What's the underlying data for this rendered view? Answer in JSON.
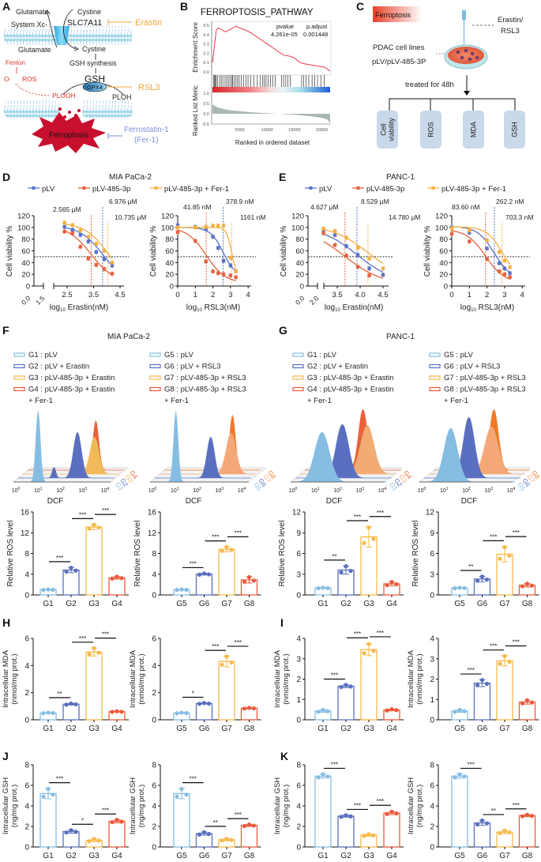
{
  "panel_labels": {
    "a": "A",
    "b": "B",
    "c": "C",
    "d": "D",
    "e": "E",
    "f": "F",
    "g": "G",
    "h": "H",
    "i": "I",
    "j": "J",
    "k": "K"
  },
  "panel_a": {
    "glutamate_top": "Glutamate",
    "cystine_top": "Cystine",
    "slc7a11": "SLC7A11",
    "erastin": "Erastin",
    "system_xc": "System Xc-",
    "glutamate_bottom": "Glutamate",
    "cystine_bottom": "Cystine",
    "gsh_synthesis": "GSH synthesis",
    "fenton": "Fenton",
    "o_radical": "O·",
    "ros": "ROS",
    "gsh": "GSH",
    "gpx4": "GPX4",
    "rsl3": "RSL3",
    "plooh": "PLOOH",
    "ploh": "PLOH",
    "ferroptosis": "Ferroptosis",
    "ferrostatin": "Ferrostatin-1",
    "fer1": "(Fer-1)",
    "colors": {
      "inhibitor": "#f5a53c",
      "fer1": "#7a8fd6",
      "ros": "#e0302a",
      "membrane": "#9fd8ea",
      "ferroptosis": "#c8102e"
    }
  },
  "panel_c": {
    "ferroptosis": "Ferroptosis",
    "erastin_rsl3": [
      "Erastin/",
      "RSL3"
    ],
    "cells": [
      "PDAC cell lines",
      "pLV/pLV-485-3P"
    ],
    "treated": "treated for 48h",
    "assays": [
      [
        "Cell",
        "viability"
      ],
      [
        "ROS"
      ],
      [
        "MDA"
      ],
      [
        "GSH"
      ]
    ],
    "box_color": "#c9d8ea"
  },
  "de_common": {
    "titles": [
      "MIA PaCa-2",
      "PANC-1"
    ],
    "legend": [
      "pLV",
      "pLV-485-3p",
      "pLV-485-3p + Fer-1"
    ],
    "colors": [
      "#5a72c8",
      "#e8603c",
      "#f5b042"
    ],
    "ylabel": "Cell viability %"
  },
  "fg_common": {
    "titles": [
      "MIA PaCa-2",
      "PANC-1"
    ],
    "legend_erastin": [
      "G1 : pLV",
      "G2 : pLV + Erastin",
      "G3 : pLV-485-3p + Erastin",
      "G4 : pLV-485-3p + Erastin",
      "+ Fer-1"
    ],
    "legend_rsl3": [
      "G5 : pLV",
      "G6 : pLV + RSL3",
      "G7 : pLV-485-3p + RSL3",
      "G8 : pLV-485-3p + RSL3",
      "+ Fer-1"
    ],
    "xlabel": "DCF",
    "decade_ticks": [
      "10",
      "10",
      "10",
      "10",
      "10"
    ],
    "decade_exps": [
      "0",
      "1",
      "2",
      "3",
      "4"
    ]
  },
  "chart_data": [
    {
      "type": "line",
      "title": "FERROPTOSIS_PATHWAY",
      "ylabel": "Enrichment Score",
      "ylabel2": "Ranked List Meric",
      "xlabel": "Ranked in ordered dataset",
      "stat_headers": [
        "pvalue",
        "p.adjust"
      ],
      "stat_values": [
        "4.261e-05",
        "0.001448"
      ],
      "x": [
        0,
        300,
        700,
        1000,
        1500,
        2000,
        2500,
        3000,
        3500,
        4200,
        5000,
        6000,
        7000,
        8000,
        9000,
        10000,
        11000,
        12000,
        13000,
        14000,
        15000,
        16000,
        16500,
        17500,
        18500,
        19500,
        20500,
        21500
      ],
      "es": [
        0.1,
        0.25,
        0.45,
        0.47,
        0.46,
        0.44,
        0.43,
        0.45,
        0.46,
        0.49,
        0.47,
        0.45,
        0.42,
        0.38,
        0.34,
        0.3,
        0.26,
        0.22,
        0.18,
        0.17,
        0.15,
        0.1,
        0.09,
        0.08,
        0.07,
        0.06,
        0.05,
        0.01
      ],
      "hits": [
        200,
        400,
        500,
        700,
        900,
        1300,
        1600,
        1900,
        2300,
        2600,
        2900,
        3200,
        3500,
        3700,
        4000,
        4300,
        4600,
        4900,
        5300,
        5700,
        6100,
        6500,
        7000,
        7600,
        8200,
        8700,
        9200,
        9500,
        9800,
        10200,
        10600,
        11000,
        11500,
        12600,
        13000,
        13400,
        13800,
        14200,
        16300,
        16700,
        17100,
        17600,
        18200,
        18700,
        19200,
        19800,
        20400
      ],
      "metric_x": [
        0,
        1000,
        3000,
        6000,
        9000,
        12000,
        15000,
        18000,
        20000,
        21000,
        21500
      ],
      "metric": [
        0.45,
        0.3,
        0.18,
        0.1,
        0.04,
        0.0,
        -0.05,
        -0.12,
        -0.2,
        -0.28,
        -0.45
      ],
      "yticks_es": [
        "0.0",
        "0.1",
        "0.2",
        "0.3",
        "0.4",
        "0.5"
      ],
      "yticks_metric": [
        "1.0",
        "0.5",
        "0.0",
        "-0.5"
      ],
      "xticks": [
        "5000",
        "10000",
        "15000",
        "20000"
      ],
      "xlim": [
        0,
        21500
      ]
    },
    {
      "type": "line",
      "xlabel_parts": [
        "log",
        "10",
        " Erastin(nM)"
      ],
      "ylim": [
        0,
        120
      ],
      "yticks": [
        "0",
        "20",
        "40",
        "60",
        "80",
        "100",
        "120"
      ],
      "xticks": [
        "2.5",
        "3.5",
        "4.5"
      ],
      "break_ticks": [
        "0.0",
        "1.5"
      ],
      "ic50_labels": [
        "2.565 μM",
        "6.976 μM",
        "10.735 μM"
      ],
      "ic50_log10": [
        3.41,
        3.84,
        4.03
      ],
      "x": [
        2.4,
        2.7,
        3.0,
        3.3,
        3.6,
        3.9,
        4.2
      ],
      "series": [
        {
          "name": "pLV",
          "values": [
            101,
            96,
            87,
            76,
            58,
            46,
            35
          ]
        },
        {
          "name": "pLV-485-3p",
          "values": [
            93,
            90,
            67,
            47,
            36,
            29,
            21
          ]
        },
        {
          "name": "pLV-485-3p + Fer-1",
          "values": [
            108,
            104,
            95,
            84,
            72,
            60,
            40
          ]
        }
      ],
      "reference_line": 50
    },
    {
      "type": "line",
      "xlabel_parts": [
        "log",
        "10",
        " RSL3(nM)"
      ],
      "ylim": [
        0,
        120
      ],
      "yticks": [
        "0",
        "20",
        "40",
        "60",
        "80",
        "100",
        "120"
      ],
      "xticks": [
        "0",
        "1",
        "2",
        "3",
        "4"
      ],
      "ic50_labels": [
        "41.85 nM",
        "378.9 nM",
        "1161 nM"
      ],
      "ic50_log10": [
        1.62,
        2.58,
        3.06
      ],
      "x": [
        0,
        1,
        1.6,
        2,
        2.3,
        2.6,
        3.0,
        3.3
      ],
      "series": [
        {
          "name": "pLV",
          "values": [
            104,
            101,
            97,
            84,
            65,
            43,
            35,
            25
          ]
        },
        {
          "name": "pLV-485-3p",
          "values": [
            92,
            77,
            42,
            25,
            22,
            20,
            18,
            15
          ]
        },
        {
          "name": "pLV-485-3p + Fer-1",
          "values": [
            100,
            100,
            101,
            103,
            103,
            103,
            48,
            25
          ]
        }
      ],
      "reference_line": 50
    },
    {
      "type": "line",
      "xlabel_parts": [
        "log",
        "10",
        " Erastin(nM)"
      ],
      "ylim": [
        0,
        120
      ],
      "yticks": [
        "0",
        "20",
        "40",
        "60",
        "80",
        "100",
        "120"
      ],
      "xticks": [
        "3.5",
        "4.0",
        "4.5"
      ],
      "break_ticks": [
        "0.0",
        "2.0"
      ],
      "ic50_labels": [
        "4.627 μM",
        "8.529 μM",
        "14.780 μM"
      ],
      "ic50_log10": [
        3.67,
        3.93,
        4.17
      ],
      "x": [
        3.2,
        3.45,
        3.7,
        3.95,
        4.2,
        4.5
      ],
      "series": [
        {
          "name": "pLV",
          "values": [
            95,
            87,
            68,
            53,
            30,
            19
          ]
        },
        {
          "name": "pLV-485-3p",
          "values": [
            90,
            70,
            52,
            33,
            18,
            null
          ]
        },
        {
          "name": "pLV-485-3p + Fer-1",
          "values": [
            98,
            94,
            82,
            65,
            47,
            30
          ]
        }
      ],
      "reference_line": 50
    },
    {
      "type": "line",
      "xlabel_parts": [
        "log",
        "10",
        " RSL3(nM)"
      ],
      "ylim": [
        0,
        120
      ],
      "yticks": [
        "0",
        "20",
        "40",
        "60",
        "80",
        "100",
        "120"
      ],
      "xticks": [
        "0",
        "1",
        "2",
        "3",
        "4"
      ],
      "ic50_labels": [
        "83.60 nM",
        "262.2 nM",
        "703.3 nM"
      ],
      "ic50_log10": [
        1.92,
        2.42,
        2.85
      ],
      "x": [
        0,
        1,
        2,
        2.7,
        3.0,
        3.3
      ],
      "series": [
        {
          "name": "pLV",
          "values": [
            100,
            91,
            64,
            39,
            30,
            22
          ]
        },
        {
          "name": "pLV-485-3p",
          "values": [
            89,
            76,
            46,
            25,
            20,
            15
          ]
        },
        {
          "name": "pLV-485-3p + Fer-1",
          "values": [
            98,
            95,
            78,
            58,
            43,
            32
          ]
        }
      ],
      "reference_line": 50
    },
    {
      "type": "bar",
      "ylabel": [
        "Relative ROS level"
      ],
      "categories": [
        "G1",
        "G2",
        "G3",
        "G4"
      ],
      "values": [
        1.0,
        4.8,
        13.1,
        3.3
      ],
      "sd": [
        0.05,
        0.5,
        0.5,
        0.25
      ],
      "ylim": [
        0,
        16
      ],
      "yticks": [
        "0",
        "4",
        "8",
        "12",
        "16"
      ],
      "sig": [
        "***",
        "***",
        "***"
      ]
    },
    {
      "type": "bar",
      "ylabel": [
        "Relative ROS level"
      ],
      "categories": [
        "G5",
        "G6",
        "G7",
        "G8"
      ],
      "values": [
        1.0,
        4.0,
        8.8,
        2.9
      ],
      "sd": [
        0.05,
        0.15,
        0.5,
        0.6
      ],
      "ylim": [
        0,
        16
      ],
      "yticks": [
        "0",
        "4",
        "8",
        "12",
        "16"
      ],
      "sig": [
        "***",
        "***",
        "***"
      ]
    },
    {
      "type": "bar",
      "ylabel": [
        "Relative ROS level"
      ],
      "categories": [
        "G1",
        "G2",
        "G3",
        "G4"
      ],
      "values": [
        1.0,
        3.6,
        8.4,
        1.6
      ],
      "sd": [
        0.05,
        0.6,
        1.5,
        0.3
      ],
      "ylim": [
        0,
        12
      ],
      "yticks": [
        "0",
        "3",
        "6",
        "9",
        "12"
      ],
      "sig": [
        "**",
        "***",
        "***"
      ]
    },
    {
      "type": "bar",
      "ylabel": [
        "Relative ROS level"
      ],
      "categories": [
        "G5",
        "G6",
        "G7",
        "G8"
      ],
      "values": [
        1.0,
        2.3,
        5.9,
        1.4
      ],
      "sd": [
        0.05,
        0.4,
        1.1,
        0.25
      ],
      "ylim": [
        0,
        12
      ],
      "yticks": [
        "0",
        "3",
        "6",
        "9",
        "12"
      ],
      "sig": [
        "**",
        "***",
        "***"
      ]
    },
    {
      "type": "bar",
      "ylabel": [
        "Intracellular MDA",
        "(nmol/mg prot.)"
      ],
      "categories": [
        "G1",
        "G2",
        "G3",
        "G4"
      ],
      "values": [
        0.5,
        1.15,
        5.0,
        0.6
      ],
      "sd": [
        0.03,
        0.06,
        0.3,
        0.03
      ],
      "ylim": [
        0,
        6
      ],
      "yticks": [
        "0",
        "2",
        "4",
        "6"
      ],
      "sig": [
        "**",
        "***",
        "***"
      ]
    },
    {
      "type": "bar",
      "ylabel": [
        "Intracellular MDA",
        "(nmol/mg prot.)"
      ],
      "categories": [
        "G5",
        "G6",
        "G7",
        "G8"
      ],
      "values": [
        0.5,
        1.2,
        4.3,
        0.85
      ],
      "sd": [
        0.03,
        0.04,
        0.4,
        0.04
      ],
      "ylim": [
        0,
        6
      ],
      "yticks": [
        "0",
        "2",
        "4",
        "6"
      ],
      "sig": [
        "*",
        "***",
        "***"
      ]
    },
    {
      "type": "bar",
      "ylabel": [
        "Intracellular MDA",
        "(nmol/mg prot.)"
      ],
      "categories": [
        "G1",
        "G2",
        "G3",
        "G4"
      ],
      "values": [
        0.43,
        1.65,
        3.45,
        0.48
      ],
      "sd": [
        0.06,
        0.07,
        0.3,
        0.04
      ],
      "ylim": [
        0,
        4
      ],
      "yticks": [
        "0",
        "1",
        "2",
        "3",
        "4"
      ],
      "sig": [
        "***",
        "***",
        "***"
      ]
    },
    {
      "type": "bar",
      "ylabel": [
        "Intracellular MDA",
        "(nmol/mg prot.)"
      ],
      "categories": [
        "G5",
        "G6",
        "G7",
        "G8"
      ],
      "values": [
        0.43,
        1.8,
        2.9,
        0.87
      ],
      "sd": [
        0.06,
        0.17,
        0.25,
        0.1
      ],
      "ylim": [
        0,
        4
      ],
      "yticks": [
        "0",
        "1",
        "2",
        "3",
        "4"
      ],
      "sig": [
        "***",
        "***",
        "***"
      ]
    },
    {
      "type": "bar",
      "ylabel": [
        "Intracellular GSH",
        "(ng/mg prot.)"
      ],
      "categories": [
        "G1",
        "G2",
        "G3",
        "G4"
      ],
      "values": [
        5.2,
        1.5,
        0.65,
        2.5
      ],
      "sd": [
        0.5,
        0.15,
        0.15,
        0.15
      ],
      "ylim": [
        0,
        8
      ],
      "yticks": [
        "0",
        "2",
        "4",
        "6",
        "8"
      ],
      "sig": [
        "***",
        "*",
        "***"
      ]
    },
    {
      "type": "bar",
      "ylabel": [
        "Intracellular GSH",
        "(ng/mg prot.)"
      ],
      "categories": [
        "G5",
        "G6",
        "G7",
        "G8"
      ],
      "values": [
        5.2,
        1.3,
        0.7,
        2.1
      ],
      "sd": [
        0.5,
        0.15,
        0.1,
        0.1
      ],
      "ylim": [
        0,
        8
      ],
      "yticks": [
        "0",
        "2",
        "4",
        "6",
        "8"
      ],
      "sig": [
        "***",
        "**",
        "***"
      ]
    },
    {
      "type": "bar",
      "ylabel": [
        "Intracellular GSH",
        "(ng/mg prot.)"
      ],
      "categories": [
        "G1",
        "G2",
        "G3",
        "G4"
      ],
      "values": [
        6.9,
        3.0,
        1.15,
        3.3
      ],
      "sd": [
        0.2,
        0.1,
        0.1,
        0.15
      ],
      "ylim": [
        0,
        8
      ],
      "yticks": [
        "0",
        "2",
        "4",
        "6",
        "8"
      ],
      "sig": [
        "***",
        "***",
        "***"
      ]
    },
    {
      "type": "bar",
      "ylabel": [
        "Intracellular GSH",
        "(ng/mg prot.)"
      ],
      "categories": [
        "G5",
        "G6",
        "G7",
        "G8"
      ],
      "values": [
        6.9,
        2.35,
        1.45,
        3.05
      ],
      "sd": [
        0.2,
        0.25,
        0.15,
        0.1
      ],
      "ylim": [
        0,
        8
      ],
      "yticks": [
        "0",
        "2",
        "4",
        "6",
        "8"
      ],
      "sig": [
        "***",
        "**",
        "***"
      ]
    },
    {
      "type": "area",
      "series_names": [
        "G1",
        "G2",
        "G3",
        "G4"
      ],
      "peak_log10_DCF": [
        1.0,
        2.55,
        3.1,
        2.95
      ],
      "colors": [
        "#86bde3",
        "#5a6fbf",
        "#f2b95a",
        "#e8623a"
      ]
    },
    {
      "type": "area",
      "series_names": [
        "G5",
        "G6",
        "G7",
        "G8"
      ],
      "peak_log10_DCF": [
        1.05,
        2.4,
        3.1,
        2.95
      ],
      "colors": [
        "#86bde3",
        "#5a6fbf",
        "#f4a878",
        "#f07a28"
      ]
    },
    {
      "type": "area",
      "series_names": [
        "G1",
        "G2",
        "G3",
        "G4"
      ],
      "peak_log10_DCF": [
        1.3,
        2.0,
        2.9,
        2.5
      ],
      "colors": [
        "#86bde3",
        "#5a6fbf",
        "#f2ab72",
        "#e8623a"
      ]
    },
    {
      "type": "area",
      "series_names": [
        "G5",
        "G6",
        "G7",
        "G8"
      ],
      "peak_log10_DCF": [
        1.3,
        1.9,
        2.7,
        2.6
      ],
      "colors": [
        "#86bde3",
        "#5a6fbf",
        "#f4a878",
        "#f07a28"
      ]
    }
  ],
  "group_colors": [
    "#86bde3",
    "#5a6fbf",
    "#f5b94a",
    "#eb5a3c"
  ]
}
